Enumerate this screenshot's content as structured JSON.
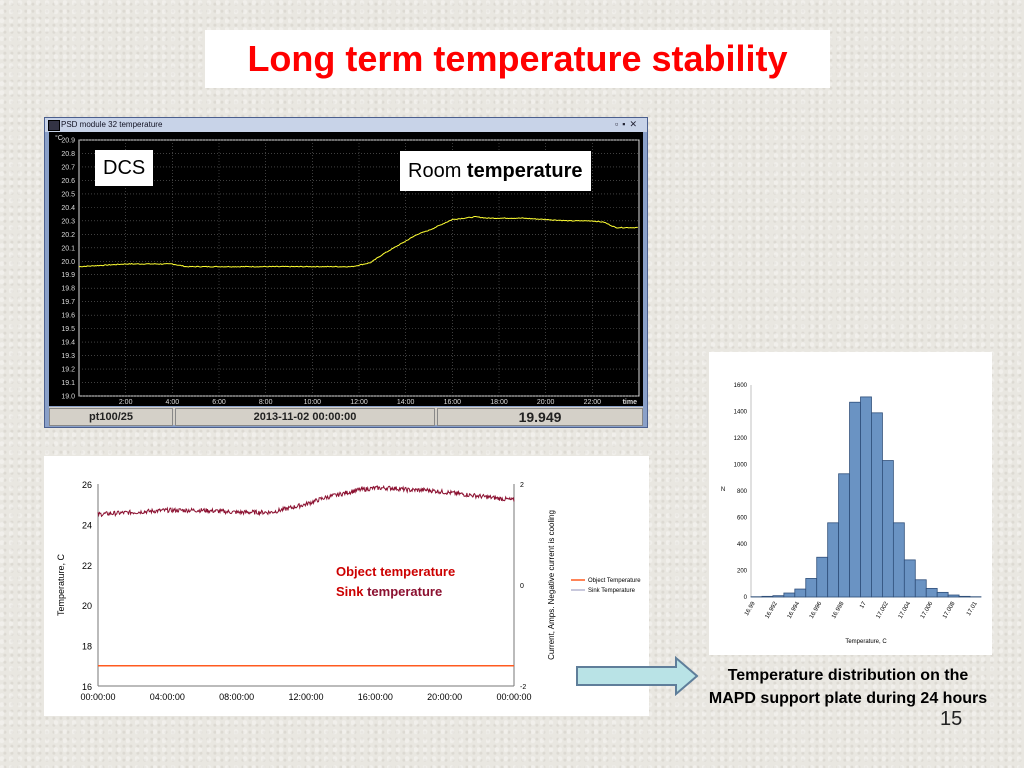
{
  "title": "Long term temperature stability",
  "slide_number": "15",
  "dcs_window": {
    "window_title": "PSD module 32 temperature",
    "label_dcs": "DCS",
    "label_room_prefix": "Room ",
    "label_room_bold": "temperature",
    "status_sensor": "pt100/25",
    "status_datetime": "2013-11-02 00:00:00",
    "status_value": "19.949"
  },
  "annotations": {
    "object_temperature": "Object temperature",
    "sink_temperature_a": "Sink",
    "sink_temperature_b": " temperature"
  },
  "caption": "Temperature distribution on the MAPD support plate during 24 hours",
  "colors": {
    "title": "#ff0000",
    "dcs_trace": "#ffff33",
    "object": "#ff5a1f",
    "sink": "#8b1030",
    "hist_bar": "#6a93c3"
  },
  "chart_data": [
    {
      "type": "line",
      "ylabel": "°C",
      "xlabel": "time",
      "ylim": [
        19.0,
        20.9
      ],
      "y_ticks": [
        "20.9",
        "20.8",
        "20.7",
        "20.6",
        "20.5",
        "20.4",
        "20.3",
        "20.2",
        "20.1",
        "20.0",
        "19.9",
        "19.8",
        "19.7",
        "19.6",
        "19.5",
        "19.4",
        "19.3",
        "19.2",
        "19.1",
        "19.0"
      ],
      "x_ticks": [
        "2:00",
        "4:00",
        "6:00",
        "8:00",
        "10:00",
        "12:00",
        "14:00",
        "16:00",
        "18:00",
        "20:00",
        "22:00"
      ],
      "xlim_hours": [
        0,
        24
      ],
      "series": [
        {
          "x": [
            0,
            1,
            2,
            3,
            4,
            4.6,
            5,
            6,
            7,
            8,
            9,
            10,
            11,
            11.7,
            12.5,
            13,
            14,
            14.5,
            15,
            15.5,
            16,
            16.5,
            17,
            17.5,
            18,
            19,
            20,
            21,
            22,
            22.5,
            23,
            24
          ],
          "y": [
            19.96,
            19.97,
            19.98,
            19.98,
            19.98,
            19.96,
            19.96,
            19.96,
            19.96,
            19.96,
            19.96,
            19.96,
            19.96,
            19.96,
            19.99,
            20.05,
            20.15,
            20.2,
            20.23,
            20.27,
            20.31,
            20.32,
            20.33,
            20.32,
            20.32,
            20.32,
            20.31,
            20.3,
            20.3,
            20.29,
            20.25,
            20.25
          ]
        }
      ]
    },
    {
      "type": "line",
      "ylabel": "Temperature, C",
      "y2label": "Current, Amps. Negative current is cooling",
      "ylim": [
        16,
        26
      ],
      "y_ticks": [
        "26",
        "24",
        "22",
        "20",
        "18",
        "16"
      ],
      "y2_ticks": [
        "2",
        "0",
        "-2"
      ],
      "x_ticks": [
        "00:00:00",
        "04:00:00",
        "08:00:00",
        "12:00:00",
        "16:00:00",
        "20:00:00",
        "00:00:00"
      ],
      "xlim_hours": [
        0,
        24
      ],
      "legend": [
        "Object Temperature",
        "Sink Temperature"
      ],
      "series": [
        {
          "name": "Object Temperature",
          "x": [
            0,
            24
          ],
          "y": [
            17.0,
            17.0
          ]
        },
        {
          "name": "Sink Temperature",
          "x": [
            0,
            2,
            4,
            6,
            8,
            10,
            11,
            12,
            13,
            14,
            15,
            16,
            17,
            18,
            19,
            20,
            21,
            22,
            23,
            24
          ],
          "y": [
            24.5,
            24.6,
            24.7,
            24.7,
            24.6,
            24.6,
            24.8,
            25.0,
            25.3,
            25.5,
            25.7,
            25.8,
            25.8,
            25.7,
            25.7,
            25.6,
            25.5,
            25.4,
            25.3,
            25.2
          ]
        }
      ]
    },
    {
      "type": "bar",
      "xlabel": "Temperature, C",
      "ylabel": "N",
      "ylim": [
        0,
        1600
      ],
      "y_ticks": [
        "1600",
        "1400",
        "1200",
        "1000",
        "800",
        "600",
        "400",
        "200",
        "0"
      ],
      "x_tick_labels": [
        "16.99",
        "16.992",
        "16.994",
        "16.996",
        "16.998",
        "17",
        "17.002",
        "17.004",
        "17.006",
        "17.008",
        "17.01"
      ],
      "values": [
        2,
        5,
        10,
        30,
        60,
        140,
        300,
        560,
        930,
        1470,
        1510,
        1390,
        1030,
        560,
        280,
        130,
        65,
        35,
        15,
        5,
        2
      ]
    }
  ]
}
